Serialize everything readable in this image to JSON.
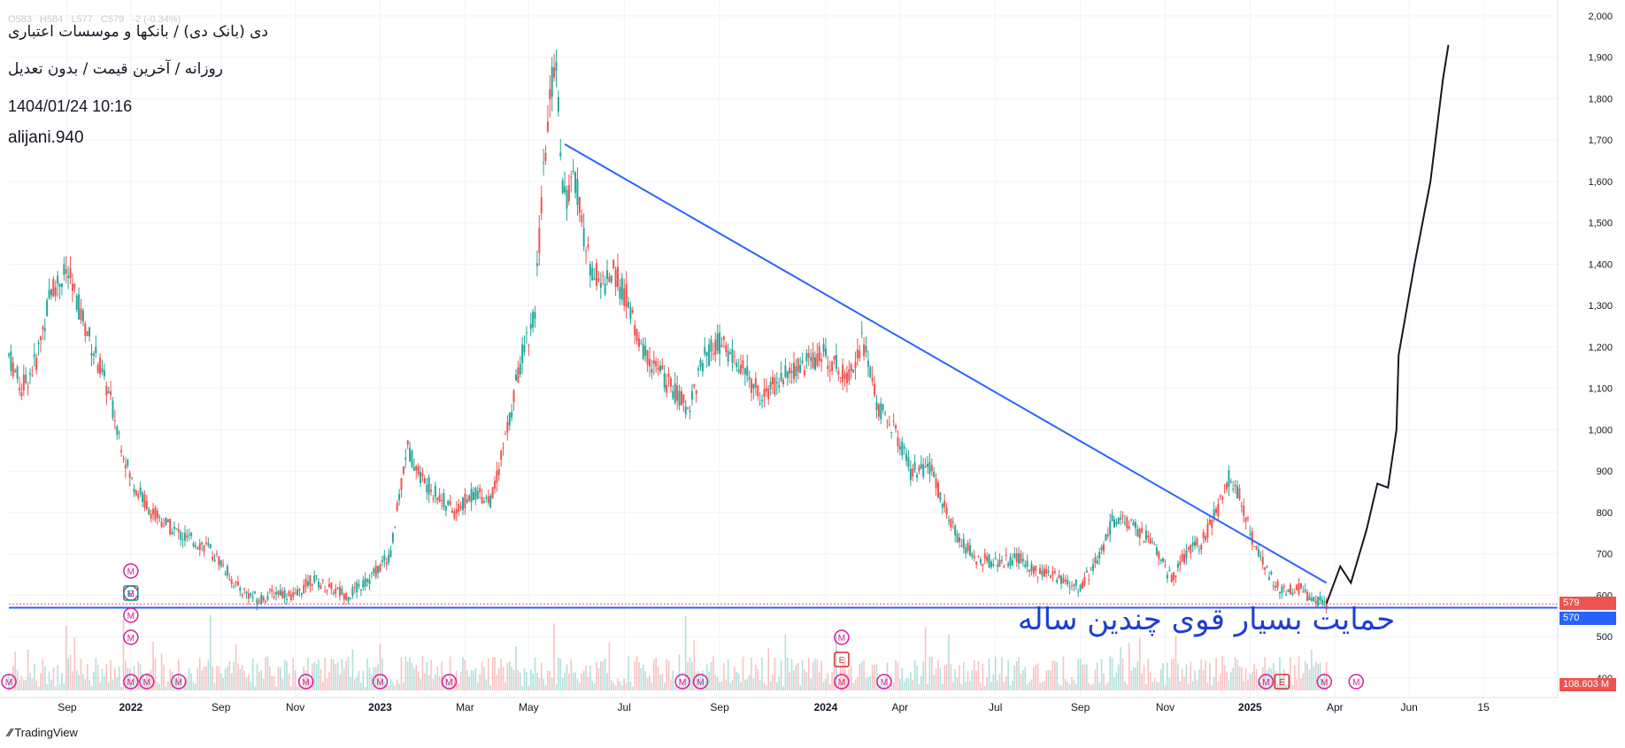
{
  "header": {
    "title": "دی (بانک دی) / بانکها و موسسات اعتباری",
    "subtitle": "روزانه / آخرین قیمت / بدون تعدیل",
    "datetime": "1404/01/24 10:16",
    "author": "alijani.940",
    "ohlc": {
      "o": "O583",
      "h": "H584",
      "l": "L577",
      "c": "C579",
      "chg": "-2 (-0.34%)"
    }
  },
  "annotation_text": "حمایت بسیار قوی چندین ساله",
  "price_labels": {
    "last": "579",
    "support": "570",
    "volume": "108.603 M"
  },
  "branding": {
    "name": "TradingView"
  },
  "colors": {
    "up": "#26a69a",
    "down": "#ef5350",
    "trendline": "#2962ff",
    "support": "#2962ff",
    "hand": "#131722",
    "event_m": "#d81b9a",
    "event_e_green": "#089981",
    "event_e_red": "#d32f2f"
  },
  "chart_data": {
    "type": "candlestick",
    "ylim": [
      370,
      2000
    ],
    "yticks": [
      "2,000",
      "1,900",
      "1,800",
      "1,700",
      "1,600",
      "1,500",
      "1,400",
      "1,300",
      "1,200",
      "1,100",
      "1,000",
      "900",
      "800",
      "700",
      "600",
      "500",
      "400"
    ],
    "ytick_values": [
      2000,
      1900,
      1800,
      1700,
      1600,
      1500,
      1400,
      1300,
      1200,
      1100,
      1000,
      900,
      800,
      700,
      600,
      500,
      400
    ],
    "xticks": [
      "Sep",
      "2022",
      "Sep",
      "Nov",
      "2023",
      "Mar",
      "May",
      "Jul",
      "Sep",
      "2024",
      "Apr",
      "Jul",
      "Sep",
      "Nov",
      "2025",
      "Apr",
      "Jun",
      "15"
    ],
    "xtick_index": [
      55,
      115,
      200,
      270,
      350,
      430,
      490,
      580,
      670,
      770,
      840,
      930,
      1010,
      1090,
      1170,
      1250,
      1320,
      1390
    ],
    "bold_ticks": [
      "2022",
      "2023",
      "2024",
      "2025"
    ],
    "price_path": [
      [
        0,
        1180
      ],
      [
        12,
        1100
      ],
      [
        25,
        1160
      ],
      [
        40,
        1340
      ],
      [
        55,
        1380
      ],
      [
        75,
        1230
      ],
      [
        95,
        1080
      ],
      [
        115,
        880
      ],
      [
        135,
        800
      ],
      [
        150,
        770
      ],
      [
        165,
        740
      ],
      [
        185,
        720
      ],
      [
        200,
        680
      ],
      [
        215,
        620
      ],
      [
        235,
        590
      ],
      [
        255,
        610
      ],
      [
        270,
        595
      ],
      [
        285,
        640
      ],
      [
        300,
        620
      ],
      [
        320,
        600
      ],
      [
        340,
        640
      ],
      [
        360,
        700
      ],
      [
        375,
        960
      ],
      [
        390,
        880
      ],
      [
        405,
        840
      ],
      [
        420,
        800
      ],
      [
        440,
        850
      ],
      [
        455,
        830
      ],
      [
        470,
        1000
      ],
      [
        485,
        1200
      ],
      [
        495,
        1260
      ],
      [
        505,
        1650
      ],
      [
        515,
        1920
      ],
      [
        523,
        1560
      ],
      [
        535,
        1600
      ],
      [
        545,
        1420
      ],
      [
        558,
        1350
      ],
      [
        570,
        1380
      ],
      [
        582,
        1320
      ],
      [
        595,
        1200
      ],
      [
        610,
        1150
      ],
      [
        625,
        1100
      ],
      [
        640,
        1050
      ],
      [
        655,
        1170
      ],
      [
        670,
        1210
      ],
      [
        690,
        1150
      ],
      [
        710,
        1080
      ],
      [
        730,
        1130
      ],
      [
        750,
        1160
      ],
      [
        770,
        1180
      ],
      [
        790,
        1130
      ],
      [
        805,
        1220
      ],
      [
        810,
        1160
      ],
      [
        820,
        1050
      ],
      [
        835,
        1000
      ],
      [
        850,
        900
      ],
      [
        870,
        900
      ],
      [
        890,
        760
      ],
      [
        910,
        690
      ],
      [
        930,
        680
      ],
      [
        950,
        690
      ],
      [
        970,
        660
      ],
      [
        990,
        640
      ],
      [
        1010,
        620
      ],
      [
        1030,
        700
      ],
      [
        1040,
        780
      ],
      [
        1060,
        770
      ],
      [
        1080,
        720
      ],
      [
        1095,
        640
      ],
      [
        1110,
        700
      ],
      [
        1125,
        730
      ],
      [
        1140,
        810
      ],
      [
        1150,
        880
      ],
      [
        1160,
        840
      ],
      [
        1172,
        740
      ],
      [
        1185,
        660
      ],
      [
        1200,
        610
      ],
      [
        1215,
        620
      ],
      [
        1230,
        590
      ],
      [
        1242,
        579
      ]
    ],
    "trendline": [
      [
        524,
        1690
      ],
      [
        1242,
        630
      ]
    ],
    "support_level": 570,
    "last_price": 579,
    "hand_drawn_projection": [
      [
        1242,
        580
      ],
      [
        1255,
        670
      ],
      [
        1265,
        630
      ],
      [
        1280,
        760
      ],
      [
        1290,
        870
      ],
      [
        1300,
        860
      ],
      [
        1308,
        1000
      ],
      [
        1310,
        1180
      ],
      [
        1325,
        1400
      ],
      [
        1340,
        1600
      ],
      [
        1352,
        1850
      ],
      [
        1357,
        1930
      ]
    ]
  }
}
